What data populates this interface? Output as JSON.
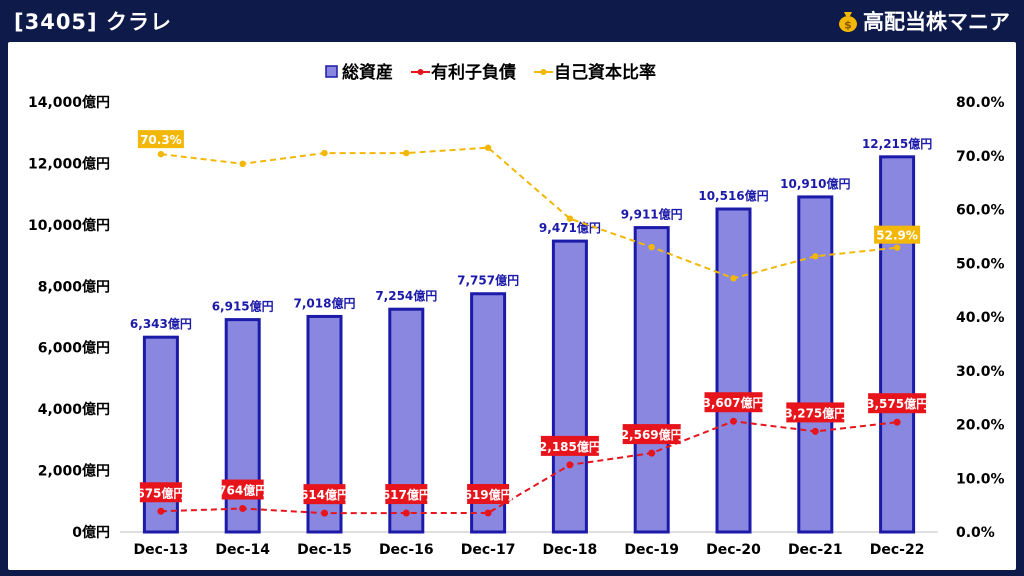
{
  "header": {
    "title": "[3405] クラレ",
    "brand": "高配当株マニア",
    "brand_icon": "money-bag-icon"
  },
  "colors": {
    "background": "#0d1a4a",
    "bar_fill": "#8a87e0",
    "bar_stroke": "#1c1aa8",
    "debt": "#e8141c",
    "equity_ratio": "#f2b707",
    "asset_label": "#1c1aa8"
  },
  "chart_data": {
    "type": "bar",
    "categories": [
      "Dec-13",
      "Dec-14",
      "Dec-15",
      "Dec-16",
      "Dec-17",
      "Dec-18",
      "Dec-19",
      "Dec-20",
      "Dec-21",
      "Dec-22"
    ],
    "legend_position": "top-center",
    "grid": false,
    "y_left": {
      "min": 0,
      "max": 14000,
      "ticks": [
        "0億円",
        "2,000億円",
        "4,000億円",
        "6,000億円",
        "8,000億円",
        "10,000億円",
        "12,000億円",
        "14,000億円"
      ]
    },
    "y_right": {
      "min": 0,
      "max": 80,
      "ticks": [
        "0.0%",
        "10.0%",
        "20.0%",
        "30.0%",
        "40.0%",
        "50.0%",
        "60.0%",
        "70.0%",
        "80.0%"
      ]
    },
    "series": [
      {
        "name": "総資産",
        "kind": "bar",
        "axis": "left",
        "values": [
          6343,
          6915,
          7018,
          7254,
          7757,
          9471,
          9911,
          10516,
          10910,
          12215
        ],
        "labels": [
          "6,343億円",
          "6,915億円",
          "7,018億円",
          "7,254億円",
          "7,757億円",
          "9,471億円",
          "9,911億円",
          "10,516億円",
          "10,910億円",
          "12,215億円"
        ]
      },
      {
        "name": "有利子負債",
        "kind": "line",
        "axis": "left",
        "values": [
          675,
          764,
          614,
          617,
          619,
          2185,
          2569,
          3607,
          3275,
          3575
        ],
        "labels": [
          "675億円",
          "764億円",
          "614億円",
          "617億円",
          "619億円",
          "2,185億円",
          "2,569億円",
          "3,607億円",
          "3,275億円",
          "3,575億円"
        ]
      },
      {
        "name": "自己資本比率",
        "kind": "line",
        "axis": "right",
        "values": [
          70.3,
          68.5,
          70.5,
          70.5,
          71.5,
          58.3,
          53.0,
          47.2,
          51.3,
          52.9
        ],
        "labels": [
          "70.3%",
          "",
          "",
          "",
          "",
          "",
          "",
          "",
          "",
          "52.9%"
        ]
      }
    ]
  }
}
